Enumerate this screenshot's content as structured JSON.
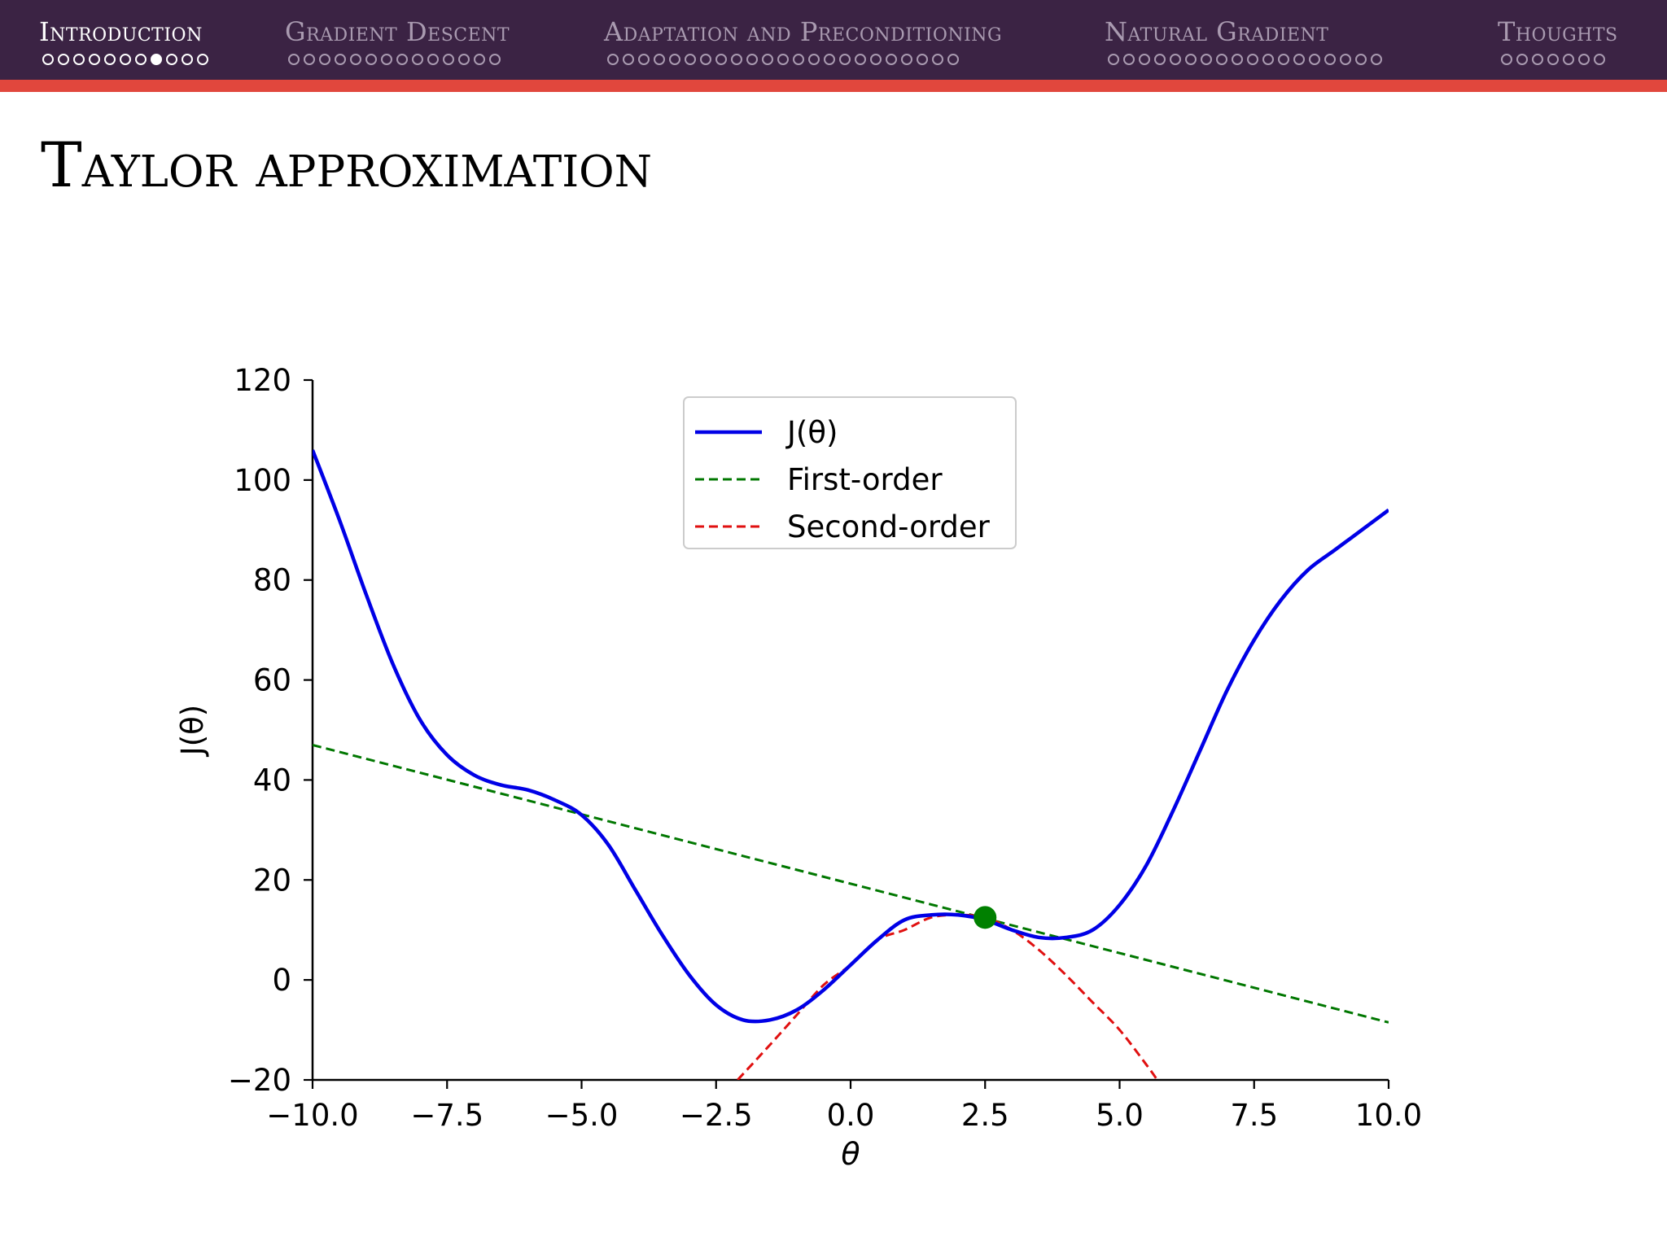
{
  "nav": {
    "sections": [
      {
        "title": "Introduction",
        "dots": 11,
        "current_dot": 7,
        "active": true
      },
      {
        "title": "Gradient Descent",
        "dots": 14,
        "current_dot": -1,
        "active": false
      },
      {
        "title": "Adaptation and Preconditioning",
        "dots": 23,
        "current_dot": -1,
        "active": false
      },
      {
        "title": "Natural Gradient",
        "dots": 18,
        "current_dot": -1,
        "active": false
      },
      {
        "title": "Thoughts",
        "dots": 7,
        "current_dot": -1,
        "active": false
      }
    ]
  },
  "slide": {
    "title": "Taylor approximation"
  },
  "colors": {
    "navbar": "#3b2344",
    "accent": "#e1473d",
    "j": "#0000e6",
    "first": "#007700",
    "second": "#e01010",
    "point": "#008000"
  },
  "chart_data": {
    "type": "line",
    "xlabel": "θ",
    "ylabel": "J(θ)",
    "xlim": [
      -10.0,
      10.0
    ],
    "ylim": [
      -20,
      120
    ],
    "xticks": [
      -10.0,
      -7.5,
      -5.0,
      -2.5,
      0.0,
      2.5,
      5.0,
      7.5,
      10.0
    ],
    "xtick_labels": [
      "−10.0",
      "−7.5",
      "−5.0",
      "−2.5",
      "0.0",
      "2.5",
      "5.0",
      "7.5",
      "10.0"
    ],
    "yticks": [
      -20,
      0,
      20,
      40,
      60,
      80,
      100,
      120
    ],
    "ytick_labels": [
      "−20",
      "0",
      "20",
      "40",
      "60",
      "80",
      "100",
      "120"
    ],
    "legend_position": "top-center",
    "grid": false,
    "series": [
      {
        "name": "J(θ)",
        "style": "solid",
        "color": "#0000e6",
        "x": [
          -10.0,
          -9.5,
          -9.0,
          -8.5,
          -8.0,
          -7.5,
          -7.0,
          -6.5,
          -6.0,
          -5.5,
          -5.0,
          -4.5,
          -4.0,
          -3.5,
          -3.0,
          -2.5,
          -2.0,
          -1.5,
          -1.0,
          -0.5,
          0.0,
          0.5,
          1.0,
          1.5,
          2.0,
          2.5,
          3.0,
          3.5,
          4.0,
          4.5,
          5.0,
          5.5,
          6.0,
          6.5,
          7.0,
          7.5,
          8.0,
          8.5,
          9.0,
          9.5,
          10.0
        ],
        "y": [
          106,
          92,
          77,
          63,
          52,
          45,
          41,
          39,
          38,
          36,
          33,
          27,
          18,
          9,
          1,
          -5,
          -8,
          -8,
          -6,
          -2,
          3,
          8,
          12,
          13,
          13,
          12,
          10,
          8.5,
          8.5,
          10,
          15,
          23,
          34,
          46,
          58,
          68,
          76,
          82,
          86,
          90,
          94
        ]
      },
      {
        "name": "First-order",
        "style": "dashed",
        "color": "#007700",
        "x": [
          -10.0,
          10.0
        ],
        "y": [
          47,
          -8.5
        ]
      },
      {
        "name": "Second-order",
        "style": "dashed",
        "color": "#e01010",
        "x": [
          -2.1,
          -1.5,
          -1.0,
          -0.5,
          0.0,
          0.5,
          1.0,
          1.5,
          2.0,
          2.5,
          3.0,
          3.5,
          4.0,
          4.5,
          5.0,
          5.5,
          5.7
        ],
        "y": [
          -20,
          -13,
          -7,
          -1,
          3,
          8,
          10,
          12.5,
          13,
          12.5,
          10,
          6,
          1,
          -4.5,
          -10,
          -17,
          -20
        ]
      }
    ],
    "point": {
      "x": 2.5,
      "y": 12.5
    }
  }
}
